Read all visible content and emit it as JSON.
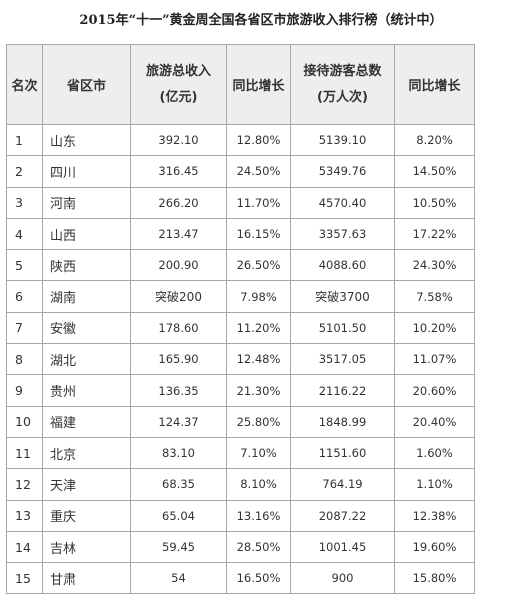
{
  "title": "2015年“十一”黄金周全国各省区市旅游收入排行榜（统计中）",
  "headers": {
    "rank": "名次",
    "province": "省区市",
    "revenue_line1": "旅游总收入",
    "revenue_line2": "(亿元)",
    "revenue_growth": "同比增长",
    "visitors_line1": "接待游客总数",
    "visitors_line2": "(万人次)",
    "visitors_growth": "同比增长"
  },
  "rows": [
    {
      "rank": "1",
      "province": "山东",
      "revenue": "392.10",
      "revenue_growth": "12.80%",
      "visitors": "5139.10",
      "visitors_growth": "8.20%"
    },
    {
      "rank": "2",
      "province": "四川",
      "revenue": "316.45",
      "revenue_growth": "24.50%",
      "visitors": "5349.76",
      "visitors_growth": "14.50%"
    },
    {
      "rank": "3",
      "province": "河南",
      "revenue": "266.20",
      "revenue_growth": "11.70%",
      "visitors": "4570.40",
      "visitors_growth": "10.50%"
    },
    {
      "rank": "4",
      "province": "山西",
      "revenue": "213.47",
      "revenue_growth": "16.15%",
      "visitors": "3357.63",
      "visitors_growth": "17.22%"
    },
    {
      "rank": "5",
      "province": "陕西",
      "revenue": "200.90",
      "revenue_growth": "26.50%",
      "visitors": "4088.60",
      "visitors_growth": "24.30%"
    },
    {
      "rank": "6",
      "province": "湖南",
      "revenue": "突破200",
      "revenue_growth": "7.98%",
      "visitors": "突破3700",
      "visitors_growth": "7.58%"
    },
    {
      "rank": "7",
      "province": "安徽",
      "revenue": "178.60",
      "revenue_growth": "11.20%",
      "visitors": "5101.50",
      "visitors_growth": "10.20%"
    },
    {
      "rank": "8",
      "province": "湖北",
      "revenue": "165.90",
      "revenue_growth": "12.48%",
      "visitors": "3517.05",
      "visitors_growth": "11.07%"
    },
    {
      "rank": "9",
      "province": "贵州",
      "revenue": "136.35",
      "revenue_growth": "21.30%",
      "visitors": "2116.22",
      "visitors_growth": "20.60%"
    },
    {
      "rank": "10",
      "province": "福建",
      "revenue": "124.37",
      "revenue_growth": "25.80%",
      "visitors": "1848.99",
      "visitors_growth": "20.40%"
    },
    {
      "rank": "11",
      "province": "北京",
      "revenue": "83.10",
      "revenue_growth": "7.10%",
      "visitors": "1151.60",
      "visitors_growth": "1.60%"
    },
    {
      "rank": "12",
      "province": "天津",
      "revenue": "68.35",
      "revenue_growth": "8.10%",
      "visitors": "764.19",
      "visitors_growth": "1.10%"
    },
    {
      "rank": "13",
      "province": "重庆",
      "revenue": "65.04",
      "revenue_growth": "13.16%",
      "visitors": "2087.22",
      "visitors_growth": "12.38%"
    },
    {
      "rank": "14",
      "province": "吉林",
      "revenue": "59.45",
      "revenue_growth": "28.50%",
      "visitors": "1001.45",
      "visitors_growth": "19.60%"
    },
    {
      "rank": "15",
      "province": "甘肃",
      "revenue": "54",
      "revenue_growth": "16.50%",
      "visitors": "900",
      "visitors_growth": "15.80%"
    }
  ]
}
